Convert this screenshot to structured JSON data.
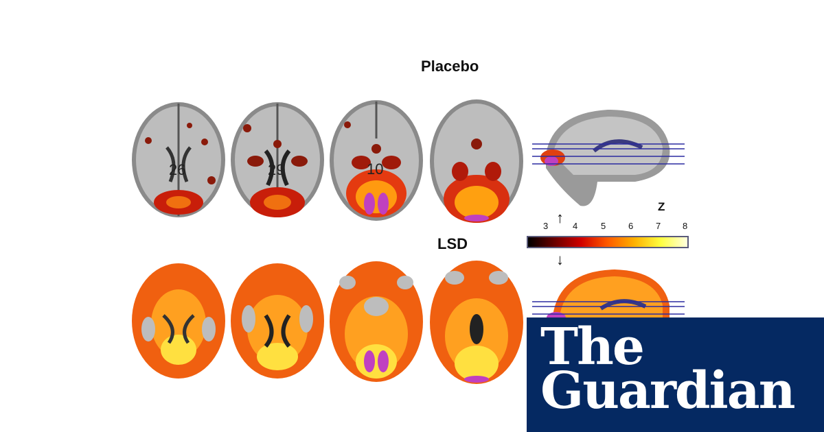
{
  "figure": {
    "placebo_title": "Placebo",
    "lsd_title": "LSD",
    "slice_labels": [
      "26",
      "29",
      "10",
      ""
    ],
    "colorbar": {
      "label": "Z",
      "ticks": [
        "3",
        "4",
        "5",
        "6",
        "7",
        "8"
      ],
      "gradient_colors": [
        "#000000",
        "#6a0000",
        "#d00000",
        "#ff5a00",
        "#ffb000",
        "#ffff40",
        "#ffffe0"
      ]
    },
    "arrows": {
      "up": "↑",
      "down": "↓"
    }
  },
  "branding": {
    "line1": "The",
    "line2": "Guardian",
    "background": "#052962"
  }
}
